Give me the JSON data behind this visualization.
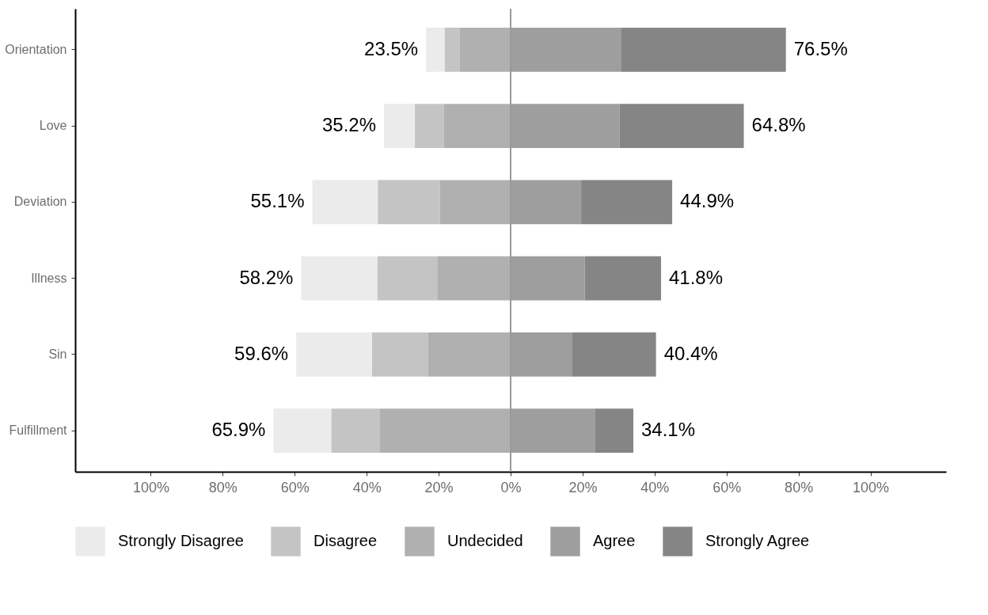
{
  "chart_data": {
    "type": "bar",
    "orientation": "horizontal",
    "stacked": true,
    "categories": [
      "Orientation",
      "Love",
      "Deviation",
      "Illness",
      "Sin",
      "Fulfillment"
    ],
    "series": [
      {
        "name": "Strongly Disagree",
        "color": "#ebebeb",
        "values": [
          -5.2,
          -8.6,
          -18.2,
          -21.2,
          -21.1,
          -16.1
        ]
      },
      {
        "name": "Disagree",
        "color": "#c4c4c4",
        "values": [
          -4.1,
          -8.0,
          -17.3,
          -16.6,
          -15.5,
          -13.5
        ]
      },
      {
        "name": "Undecided",
        "color": "#b0b0b0",
        "values": [
          -14.2,
          -18.6,
          -19.6,
          -20.4,
          -23.0,
          -36.3
        ]
      },
      {
        "name": "Agree",
        "color": "#9e9e9e",
        "values": [
          30.8,
          30.3,
          19.6,
          20.6,
          17.0,
          23.4
        ]
      },
      {
        "name": "Strongly Agree",
        "color": "#858585",
        "values": [
          45.7,
          34.5,
          25.3,
          21.2,
          23.4,
          10.7
        ]
      }
    ],
    "xlim": [
      -121,
      121
    ],
    "xticks": [
      {
        "value": -100,
        "label": "100%"
      },
      {
        "value": -80,
        "label": "80%"
      },
      {
        "value": -60,
        "label": "60%"
      },
      {
        "value": -40,
        "label": "40%"
      },
      {
        "value": -20,
        "label": "20%"
      },
      {
        "value": 0,
        "label": "0%"
      },
      {
        "value": 20,
        "label": "20%"
      },
      {
        "value": 40,
        "label": "40%"
      },
      {
        "value": 60,
        "label": "60%"
      },
      {
        "value": 80,
        "label": "80%"
      },
      {
        "value": 100,
        "label": "100%"
      }
    ],
    "ref_lines": [
      {
        "axis": "x",
        "value": 0,
        "color": "#9a9a9a"
      }
    ],
    "annotations": [
      {
        "text": "23.5%",
        "x": -23.5,
        "y": "Orientation"
      },
      {
        "text": "76.5%",
        "x": 76.5,
        "y": "Orientation"
      },
      {
        "text": "35.2%",
        "x": -35.2,
        "y": "Love"
      },
      {
        "text": "64.8%",
        "x": 64.8,
        "y": "Love"
      },
      {
        "text": "55.1%",
        "x": -55.1,
        "y": "Deviation"
      },
      {
        "text": "44.9%",
        "x": 44.9,
        "y": "Deviation"
      },
      {
        "text": "58.2%",
        "x": -58.2,
        "y": "Illness"
      },
      {
        "text": "41.8%",
        "x": 41.8,
        "y": "Illness"
      },
      {
        "text": "59.6%",
        "x": -59.6,
        "y": "Sin"
      },
      {
        "text": "40.4%",
        "x": 40.4,
        "y": "Sin"
      },
      {
        "text": "65.9%",
        "x": -65.9,
        "y": "Fulfillment"
      },
      {
        "text": "34.1%",
        "x": 34.1,
        "y": "Fulfillment"
      }
    ],
    "grid": false,
    "legend": "bottom"
  }
}
